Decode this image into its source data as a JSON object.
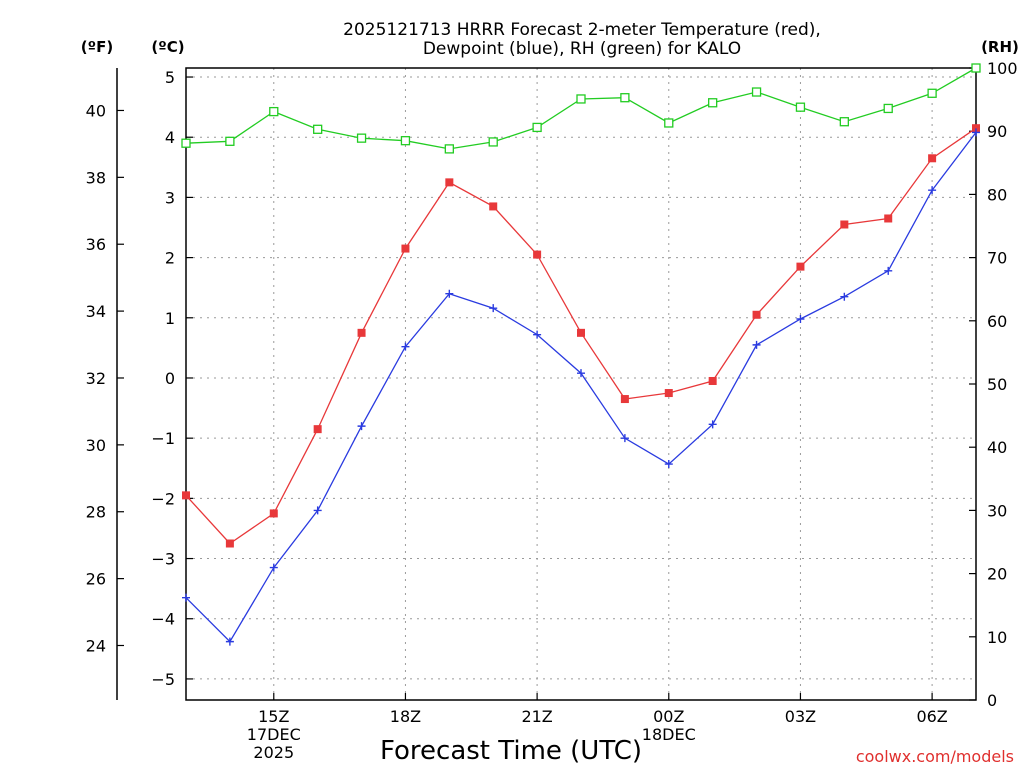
{
  "title_line1": "2025121713 HRRR Forecast 2-meter Temperature (red),",
  "title_line2": "Dewpoint (blue), RH (green) for KALO",
  "unit_f": "(ºF)",
  "unit_c": "(ºC)",
  "unit_rh": "(RH)",
  "credit": "coolwx.com/models",
  "colors": {
    "temp": "#e8383a",
    "dewpoint": "#2a3be0",
    "rh": "#22cc22",
    "grid": "#9a9a9a"
  },
  "chart_data": {
    "type": "line",
    "title": "2025121713 HRRR Forecast 2-meter Temperature (red), Dewpoint (blue), RH (green) for KALO",
    "xlabel": "Forecast Time (UTC)",
    "x_hours": [
      13,
      14,
      15,
      16,
      17,
      18,
      19,
      20,
      21,
      22,
      23,
      24,
      25,
      26,
      27,
      28,
      29,
      30,
      31
    ],
    "xlim": [
      13,
      31
    ],
    "x_ticks": [
      {
        "hour": 15,
        "lines": [
          "15Z",
          "17DEC",
          "2025"
        ]
      },
      {
        "hour": 18,
        "lines": [
          "18Z"
        ]
      },
      {
        "hour": 21,
        "lines": [
          "21Z"
        ]
      },
      {
        "hour": 24,
        "lines": [
          "00Z",
          "18DEC"
        ]
      },
      {
        "hour": 27,
        "lines": [
          "03Z"
        ]
      },
      {
        "hour": 30,
        "lines": [
          "06Z"
        ]
      }
    ],
    "ylim_c": [
      -5.35,
      5.15
    ],
    "y_ticks_c": [
      "5",
      "4",
      "3",
      "2",
      "1",
      "0",
      "−1",
      "−2",
      "−3",
      "−4",
      "−5"
    ],
    "y_ticks_c_values": [
      5,
      4,
      3,
      2,
      1,
      0,
      -1,
      -2,
      -3,
      -4,
      -5
    ],
    "y_ticks_f": [
      "40",
      "38",
      "36",
      "34",
      "32",
      "30",
      "28",
      "26",
      "24"
    ],
    "y_ticks_f_values": [
      40,
      38,
      36,
      34,
      32,
      30,
      28,
      26,
      24
    ],
    "ylim_rh": [
      0,
      100
    ],
    "y_ticks_rh": [
      "100",
      "90",
      "80",
      "70",
      "60",
      "50",
      "40",
      "30",
      "20",
      "10",
      "0"
    ],
    "y_ticks_rh_values": [
      100,
      90,
      80,
      70,
      60,
      50,
      40,
      30,
      20,
      10,
      0
    ],
    "grid": true,
    "series": [
      {
        "name": "Temperature",
        "unit": "C",
        "color": "#e8383a",
        "marker": "filled-square",
        "values": [
          -1.95,
          -2.75,
          -2.25,
          -0.85,
          0.75,
          2.15,
          3.25,
          2.85,
          2.05,
          0.75,
          -0.35,
          -0.25,
          -0.05,
          1.05,
          1.85,
          2.55,
          2.65,
          3.65,
          4.15
        ]
      },
      {
        "name": "Dewpoint",
        "unit": "C",
        "color": "#2a3be0",
        "marker": "plus",
        "values": [
          -3.65,
          -4.38,
          -3.15,
          -2.2,
          -0.8,
          0.52,
          1.4,
          1.16,
          0.72,
          0.08,
          -1.0,
          -1.43,
          -0.77,
          0.55,
          0.98,
          1.35,
          1.78,
          3.12,
          4.08
        ]
      },
      {
        "name": "RH",
        "unit": "%",
        "color": "#22cc22",
        "marker": "open-square",
        "values": [
          88.1,
          88.4,
          93.1,
          90.3,
          88.9,
          88.5,
          87.2,
          88.3,
          90.6,
          95.1,
          95.3,
          91.3,
          94.5,
          96.2,
          93.8,
          91.5,
          93.6,
          96.0,
          100.0
        ]
      }
    ]
  }
}
